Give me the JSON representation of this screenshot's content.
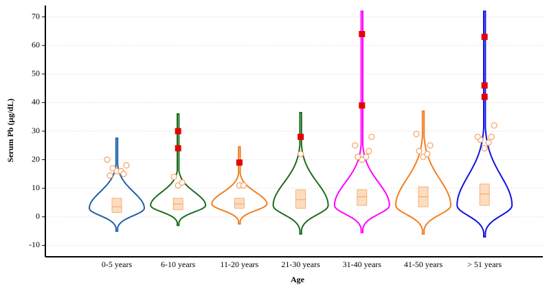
{
  "chart_data": {
    "type": "violin",
    "xlabel": "Age",
    "ylabel": "Serum Pb (µg/dL)",
    "ylim": [
      -14,
      74
    ],
    "yticks": [
      -10,
      0,
      10,
      20,
      30,
      40,
      50,
      60,
      70
    ],
    "grid": true,
    "categories": [
      "0-5 years",
      "6-10 years",
      "11-20 years",
      "21-30 years",
      "31-40 years",
      "41-50 years",
      "> 51 years"
    ],
    "box_color": "#fcd9b8",
    "near_outlier_color": "#f5a060",
    "far_outlier_color": "#e60000",
    "groups": [
      {
        "color": "#1f5fa6",
        "violin_min": -5,
        "violin_max": 27.5,
        "mode": 3,
        "q1": 1.5,
        "median": 3.5,
        "q3": 6.5,
        "near_outliers": [
          16,
          16,
          17,
          15,
          14.5,
          18,
          20
        ],
        "far_outliers": []
      },
      {
        "color": "#1a6b1a",
        "violin_min": -3,
        "violin_max": 36,
        "mode": 4,
        "q1": 2.5,
        "median": 4.5,
        "q3": 6.5,
        "near_outliers": [
          11,
          12,
          14
        ],
        "far_outliers": [
          24,
          30
        ]
      },
      {
        "color": "#f07f20",
        "violin_min": -2.5,
        "violin_max": 24.5,
        "mode": 4.5,
        "q1": 3,
        "median": 4.5,
        "q3": 6.5,
        "near_outliers": [
          11,
          11
        ],
        "far_outliers": [
          19
        ]
      },
      {
        "color": "#1a6b1a",
        "violin_min": -6,
        "violin_max": 36.5,
        "mode": 4,
        "q1": 3,
        "median": 6,
        "q3": 9.5,
        "near_outliers": [
          22
        ],
        "far_outliers": [
          28
        ]
      },
      {
        "color": "#ff00ff",
        "violin_min": -5.5,
        "violin_max": 72,
        "mode": 4,
        "q1": 4,
        "median": 7,
        "q3": 9.5,
        "near_outliers": [
          20,
          21,
          21,
          23,
          25,
          28
        ],
        "far_outliers": [
          39,
          64
        ]
      },
      {
        "color": "#f07f20",
        "violin_min": -6,
        "violin_max": 37,
        "mode": 4,
        "q1": 3.5,
        "median": 7,
        "q3": 10.5,
        "near_outliers": [
          21,
          22,
          23,
          25,
          29
        ],
        "far_outliers": []
      },
      {
        "color": "#1010e0",
        "violin_min": -7,
        "violin_max": 72,
        "mode": 4,
        "q1": 4,
        "median": 8,
        "q3": 11.5,
        "near_outliers": [
          24,
          26,
          27,
          28,
          28,
          32
        ],
        "far_outliers": [
          42,
          46,
          63
        ]
      }
    ]
  }
}
